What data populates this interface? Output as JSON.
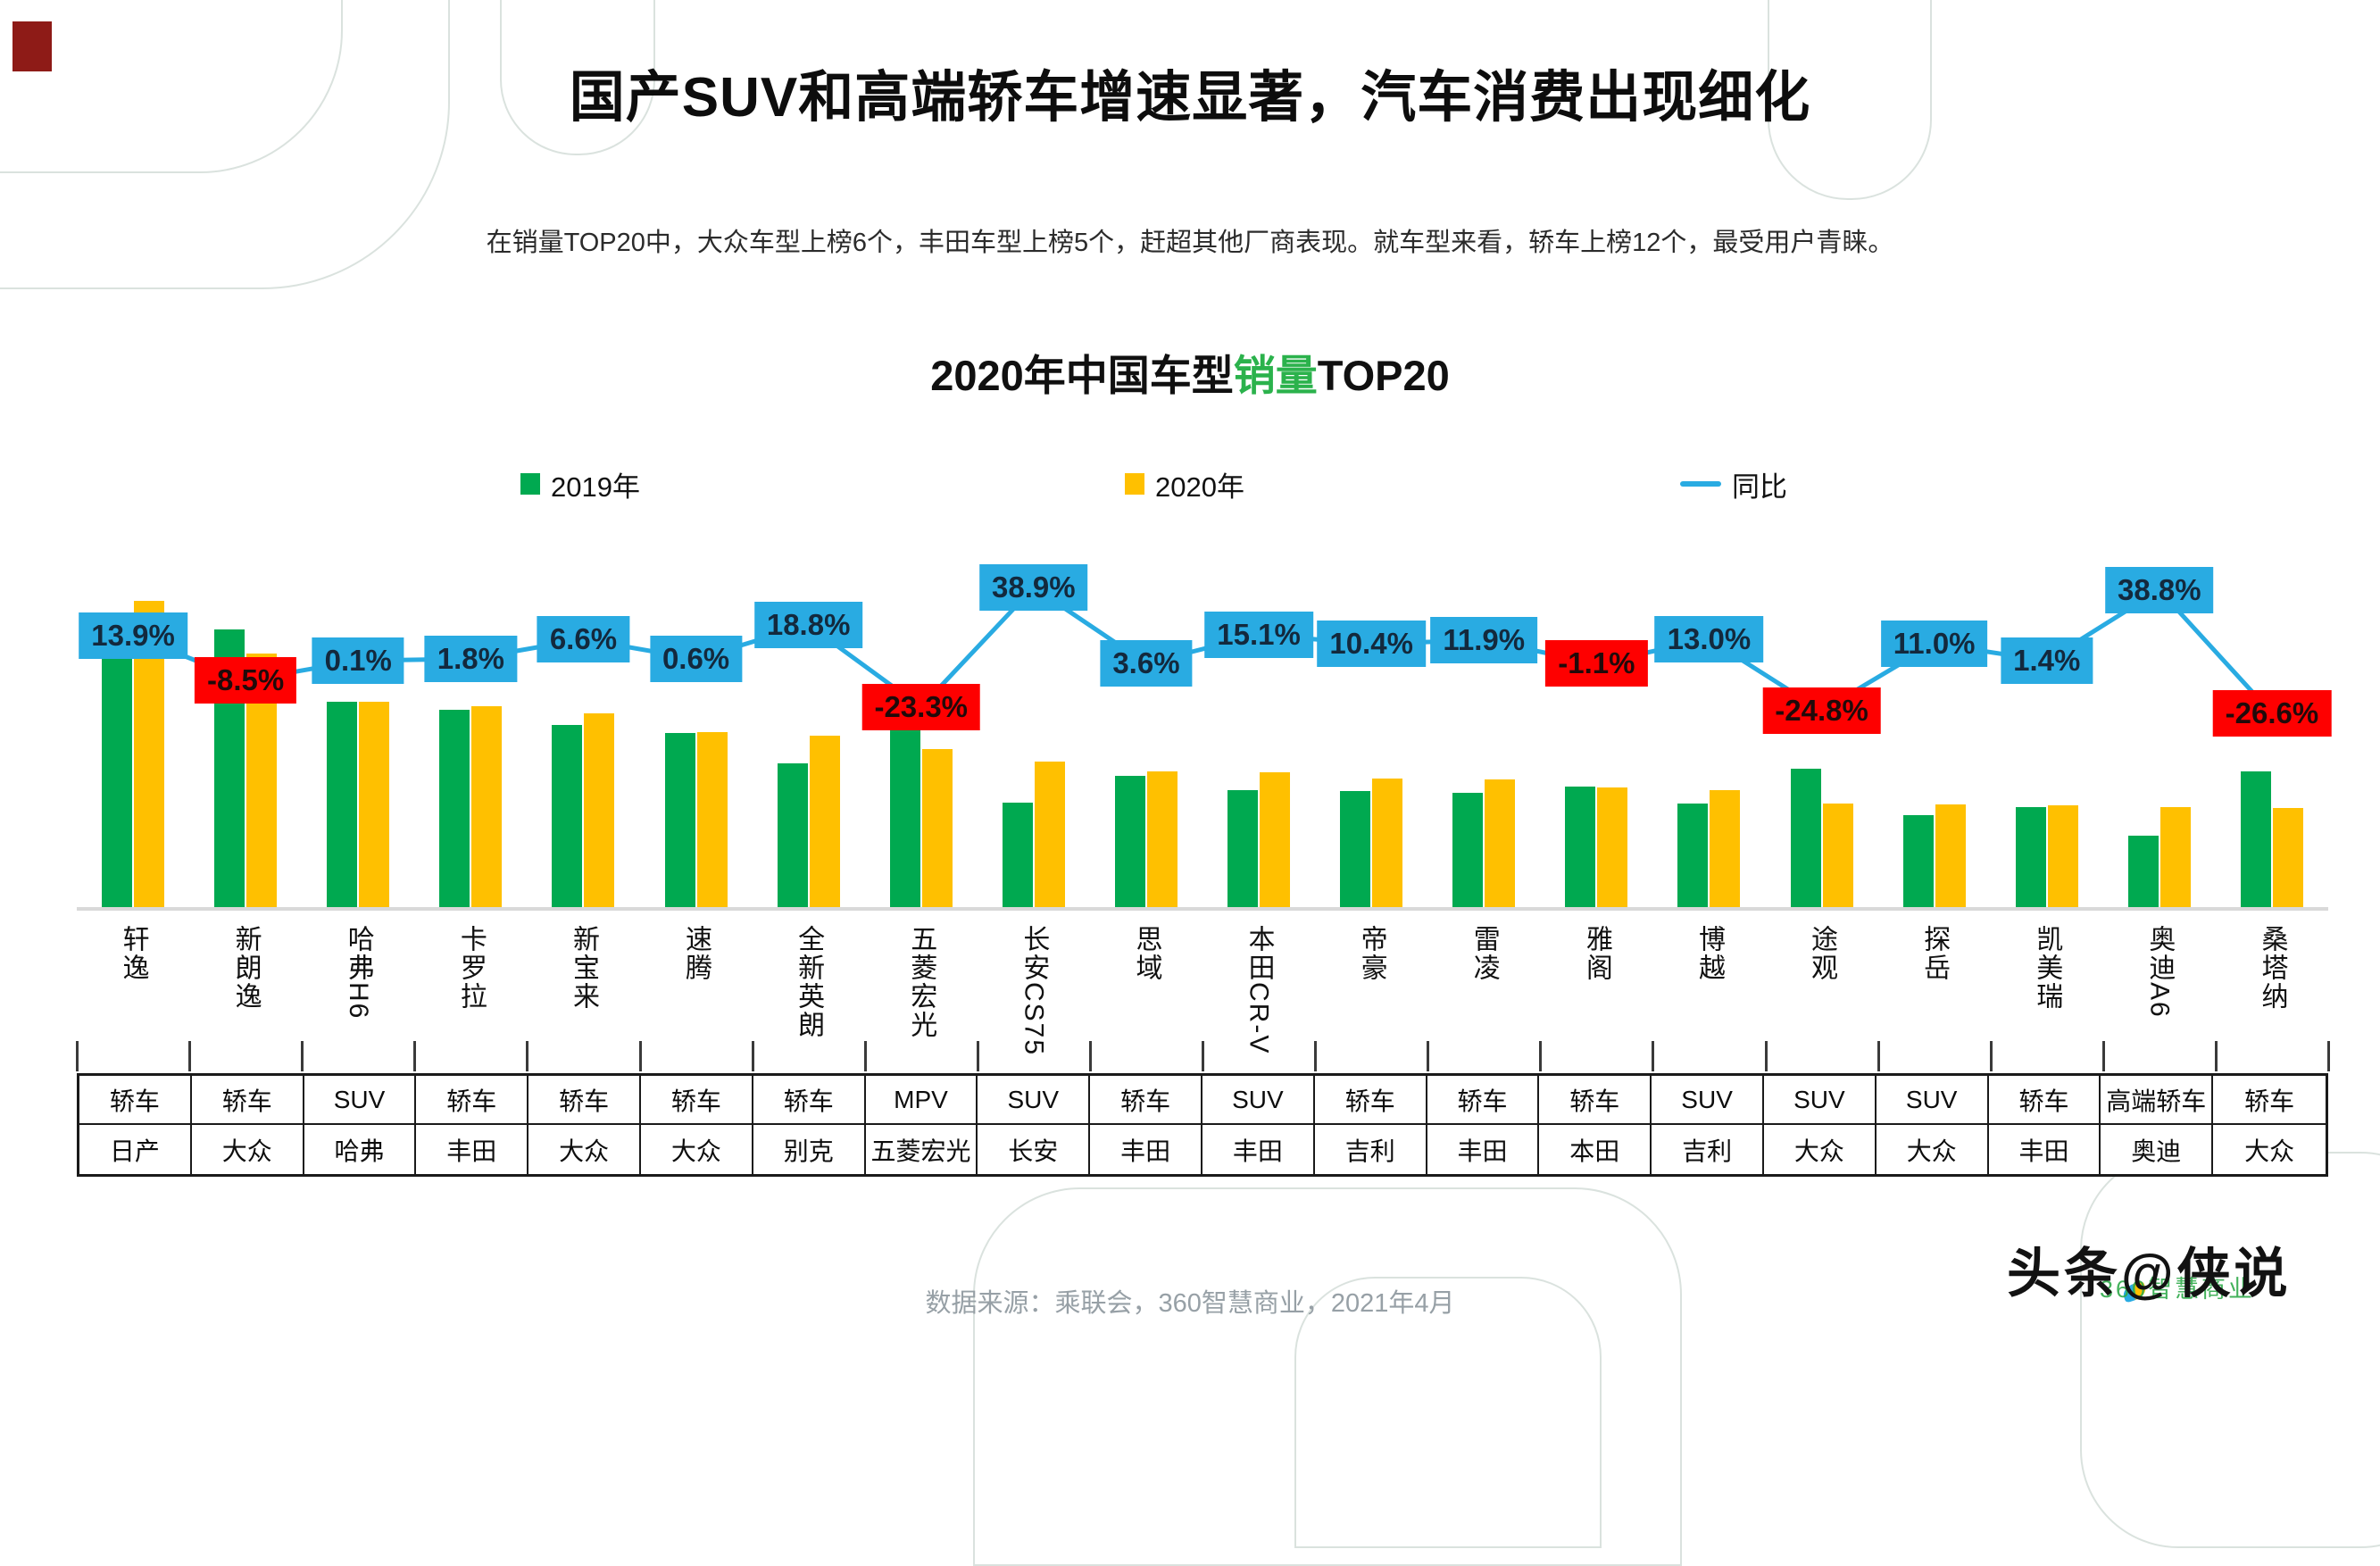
{
  "page": {
    "title": "国产SUV和高端轿车增速显著，汽车消费出现细化",
    "subtitle": "在销量TOP20中，大众车型上榜6个，丰田车型上榜5个，赶超其他厂商表现。就车型来看，轿车上榜12个，最受用户青睐。",
    "footer": "数据来源：乘联会，360智慧商业，2021年4月",
    "watermark_text": "头条@侠说",
    "watermark_bg_text": "360智慧商业"
  },
  "chart_data": {
    "type": "bar",
    "title_prefix": "2020年中国车型",
    "title_highlight": "销量",
    "title_suffix": "TOP20",
    "legend": [
      {
        "label": "2019年",
        "color": "#00a950"
      },
      {
        "label": "2020年",
        "color": "#ffc000"
      },
      {
        "label": "同比",
        "color": "#29abe2"
      }
    ],
    "colors": {
      "bar_2019": "#00a950",
      "bar_2020": "#ffc000",
      "line": "#29abe2",
      "label_positive_bg": "#29abe2",
      "label_negative_bg": "#fe0000"
    },
    "categories": [
      "轩逸",
      "新朗逸",
      "哈弗H6",
      "卡罗拉",
      "新宝来",
      "速腾",
      "全新英朗",
      "五菱宏光",
      "长安CS75",
      "思域",
      "本田CR-V",
      "帝豪",
      "雷凌",
      "雅阁",
      "博越",
      "途观",
      "探岳",
      "凯美瑞",
      "奥迪A6",
      "桑塔纳"
    ],
    "series": [
      {
        "name": "2019年",
        "values": [
          47.4,
          49.0,
          36.3,
          34.9,
          32.2,
          30.8,
          25.5,
          36.5,
          18.6,
          23.3,
          20.8,
          20.7,
          20.3,
          21.5,
          18.4,
          24.5,
          16.5,
          17.9,
          12.8,
          24.1
        ]
      },
      {
        "name": "2020年",
        "values": [
          54.0,
          44.8,
          36.3,
          35.5,
          34.3,
          31.0,
          30.3,
          28.0,
          25.8,
          24.1,
          23.9,
          22.8,
          22.7,
          21.3,
          20.8,
          18.4,
          18.3,
          18.1,
          17.8,
          17.7
        ]
      }
    ],
    "line_series": {
      "name": "同比",
      "values_pct": [
        13.9,
        -8.5,
        0.1,
        1.8,
        6.6,
        0.6,
        18.8,
        -23.3,
        38.9,
        3.6,
        15.1,
        10.4,
        11.9,
        -1.1,
        13.0,
        -24.8,
        11.0,
        1.4,
        38.8,
        -26.6
      ],
      "labels": [
        "13.9%",
        "-8.5%",
        "0.1%",
        "1.8%",
        "6.6%",
        "0.6%",
        "18.8%",
        "-23.3%",
        "38.9%",
        "3.6%",
        "15.1%",
        "10.4%",
        "11.9%",
        "-1.1%",
        "13.0%",
        "-24.8%",
        "11.0%",
        "1.4%",
        "38.8%",
        "-26.6%"
      ]
    },
    "table": {
      "type_row": [
        "轿车",
        "轿车",
        "SUV",
        "轿车",
        "轿车",
        "轿车",
        "轿车",
        "MPV",
        "SUV",
        "轿车",
        "SUV",
        "轿车",
        "轿车",
        "轿车",
        "SUV",
        "SUV",
        "SUV",
        "轿车",
        "高端轿车",
        "轿车"
      ],
      "brand_row": [
        "日产",
        "大众",
        "哈弗",
        "丰田",
        "大众",
        "大众",
        "别克",
        "五菱宏光",
        "长安",
        "丰田",
        "丰田",
        "吉利",
        "丰田",
        "本田",
        "吉利",
        "大众",
        "大众",
        "丰田",
        "奥迪",
        "大众"
      ]
    },
    "ylim": [
      0,
      60
    ],
    "grid": false,
    "legend_position": "top"
  }
}
